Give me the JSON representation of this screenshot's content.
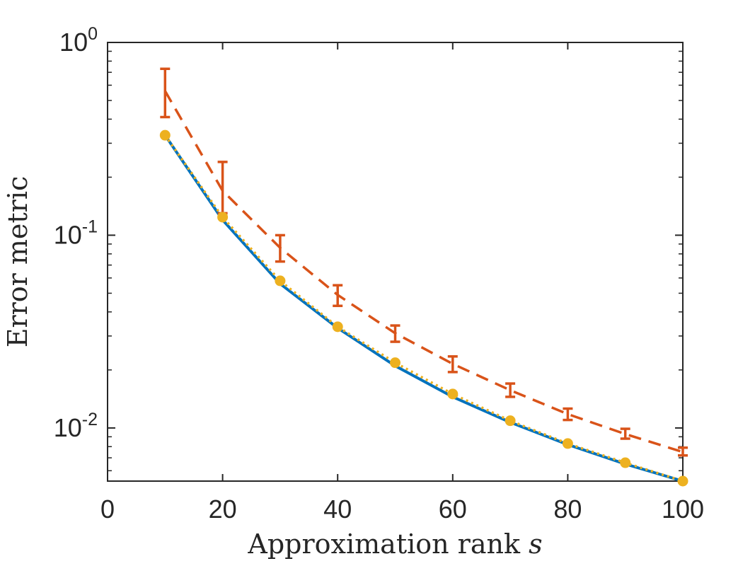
{
  "chart_data": {
    "type": "line",
    "title": "",
    "xlabel": "Approximation rank",
    "xlabel_var": "s",
    "ylabel": "Error metric",
    "xlim": [
      0,
      100
    ],
    "ylim": [
      0.0053,
      1
    ],
    "yscale": "log",
    "grid": false,
    "legend": "none",
    "x_ticks": [
      {
        "value": 0,
        "label": "0"
      },
      {
        "value": 20,
        "label": "20"
      },
      {
        "value": 40,
        "label": "40"
      },
      {
        "value": 60,
        "label": "60"
      },
      {
        "value": 80,
        "label": "80"
      },
      {
        "value": 100,
        "label": "100"
      }
    ],
    "y_ticks": [
      {
        "value": 1,
        "base": "10",
        "exp": "0"
      },
      {
        "value": 0.1,
        "base": "10",
        "exp": "-1"
      },
      {
        "value": 0.01,
        "base": "10",
        "exp": "-2"
      }
    ],
    "x": [
      10,
      20,
      30,
      40,
      50,
      60,
      70,
      80,
      90,
      100
    ],
    "series": [
      {
        "style": "solid",
        "color": "#0072BD",
        "values": [
          0.33,
          0.12,
          0.056,
          0.033,
          0.021,
          0.0145,
          0.0107,
          0.0082,
          0.0065,
          0.0053
        ]
      },
      {
        "style": "dashed",
        "color": "#D95319",
        "values": [
          0.56,
          0.17,
          0.086,
          0.049,
          0.031,
          0.0215,
          0.0157,
          0.0118,
          0.0093,
          0.0075
        ],
        "error_low": [
          0.41,
          0.13,
          0.073,
          0.043,
          0.028,
          0.0195,
          0.0145,
          0.011,
          0.0088,
          0.0072
        ],
        "error_high": [
          0.73,
          0.24,
          0.1,
          0.055,
          0.034,
          0.0235,
          0.017,
          0.0126,
          0.0099,
          0.0079
        ]
      },
      {
        "style": "dotted",
        "color": "#EDB120",
        "marker": "circle",
        "values": [
          0.33,
          0.124,
          0.058,
          0.0335,
          0.0218,
          0.015,
          0.0109,
          0.0083,
          0.0066,
          0.0053
        ]
      }
    ]
  }
}
